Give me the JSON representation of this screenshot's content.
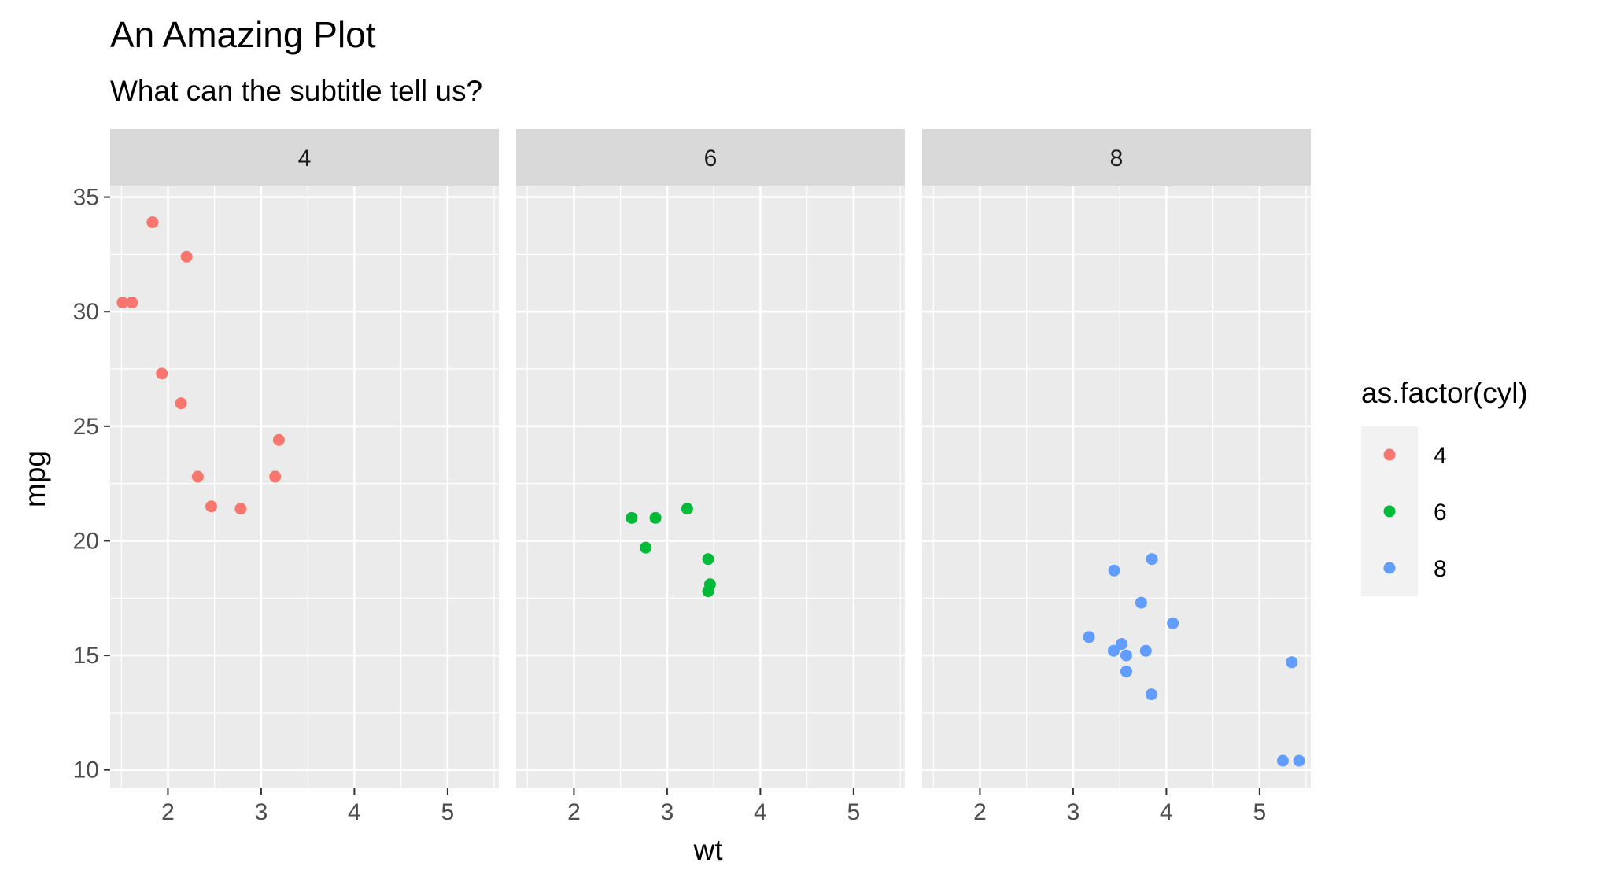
{
  "chart_data": {
    "type": "scatter",
    "title": "An Amazing Plot",
    "subtitle": "What can the subtitle tell us?",
    "xlabel": "wt",
    "ylabel": "mpg",
    "xlim": [
      1.38,
      5.55
    ],
    "ylim": [
      9.2,
      35.5
    ],
    "x_ticks": [
      2,
      3,
      4,
      5
    ],
    "y_ticks": [
      10,
      15,
      20,
      25,
      30,
      35
    ],
    "x_tick_labels": [
      "2",
      "3",
      "4",
      "5"
    ],
    "y_tick_labels": [
      "10",
      "15",
      "20",
      "25",
      "30",
      "35"
    ],
    "grid": true,
    "facets": [
      "4",
      "6",
      "8"
    ],
    "legend": {
      "title": "as.factor(cyl)",
      "position": "right",
      "entries": [
        {
          "label": "4",
          "color": "#F8766D"
        },
        {
          "label": "6",
          "color": "#00BA38"
        },
        {
          "label": "8",
          "color": "#619CFF"
        }
      ]
    },
    "series": [
      {
        "name": "4",
        "color": "#F8766D",
        "points": [
          {
            "x": 2.32,
            "y": 22.8
          },
          {
            "x": 3.19,
            "y": 24.4
          },
          {
            "x": 3.15,
            "y": 22.8
          },
          {
            "x": 2.2,
            "y": 32.4
          },
          {
            "x": 1.615,
            "y": 30.4
          },
          {
            "x": 1.835,
            "y": 33.9
          },
          {
            "x": 2.465,
            "y": 21.5
          },
          {
            "x": 1.935,
            "y": 27.3
          },
          {
            "x": 2.14,
            "y": 26.0
          },
          {
            "x": 1.513,
            "y": 30.4
          },
          {
            "x": 2.78,
            "y": 21.4
          }
        ]
      },
      {
        "name": "6",
        "color": "#00BA38",
        "points": [
          {
            "x": 2.62,
            "y": 21.0
          },
          {
            "x": 2.875,
            "y": 21.0
          },
          {
            "x": 3.215,
            "y": 21.4
          },
          {
            "x": 3.46,
            "y": 18.1
          },
          {
            "x": 3.44,
            "y": 19.2
          },
          {
            "x": 3.44,
            "y": 17.8
          },
          {
            "x": 2.77,
            "y": 19.7
          }
        ]
      },
      {
        "name": "8",
        "color": "#619CFF",
        "points": [
          {
            "x": 3.44,
            "y": 18.7
          },
          {
            "x": 3.57,
            "y": 14.3
          },
          {
            "x": 4.07,
            "y": 16.4
          },
          {
            "x": 3.73,
            "y": 17.3
          },
          {
            "x": 3.78,
            "y": 15.2
          },
          {
            "x": 5.25,
            "y": 10.4
          },
          {
            "x": 5.424,
            "y": 10.4
          },
          {
            "x": 5.345,
            "y": 14.7
          },
          {
            "x": 3.52,
            "y": 15.5
          },
          {
            "x": 3.435,
            "y": 15.2
          },
          {
            "x": 3.84,
            "y": 13.3
          },
          {
            "x": 3.845,
            "y": 19.2
          },
          {
            "x": 3.17,
            "y": 15.8
          },
          {
            "x": 3.57,
            "y": 15.0
          }
        ]
      }
    ],
    "colors": {
      "panel_background": "#EBEBEB",
      "strip_background": "#D9D9D9",
      "gridline": "#FFFFFF",
      "legend_key_background": "#F2F2F2"
    }
  }
}
